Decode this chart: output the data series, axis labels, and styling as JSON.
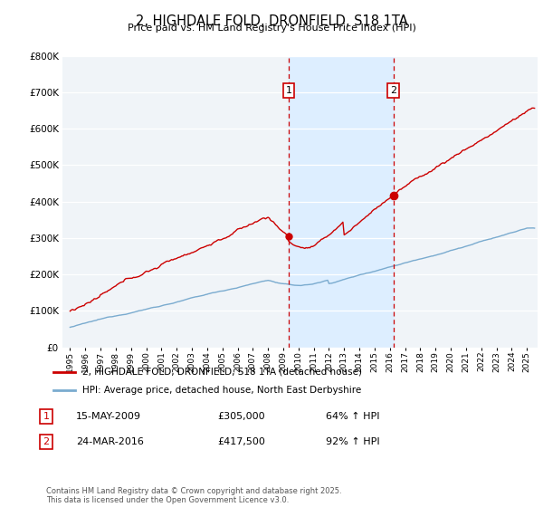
{
  "title": "2, HIGHDALE FOLD, DRONFIELD, S18 1TA",
  "subtitle": "Price paid vs. HM Land Registry's House Price Index (HPI)",
  "footnote": "Contains HM Land Registry data © Crown copyright and database right 2025.\nThis data is licensed under the Open Government Licence v3.0.",
  "legend_line1": "2, HIGHDALE FOLD, DRONFIELD, S18 1TA (detached house)",
  "legend_line2": "HPI: Average price, detached house, North East Derbyshire",
  "sale1_label": "1",
  "sale1_date": "15-MAY-2009",
  "sale1_price": "£305,000",
  "sale1_hpi": "64% ↑ HPI",
  "sale2_label": "2",
  "sale2_date": "24-MAR-2016",
  "sale2_price": "£417,500",
  "sale2_hpi": "92% ↑ HPI",
  "vline1_x": 2009.37,
  "vline2_x": 2016.23,
  "marker1_price": 305000,
  "marker2_price": 417500,
  "red_color": "#cc0000",
  "blue_color": "#7aabcf",
  "shade_color": "#ddeeff",
  "grid_color": "#cccccc",
  "ylim_max": 800000,
  "ylim_min": 0,
  "xlim_min": 1994.5,
  "xlim_max": 2025.7,
  "background_color": "#f0f4f8"
}
